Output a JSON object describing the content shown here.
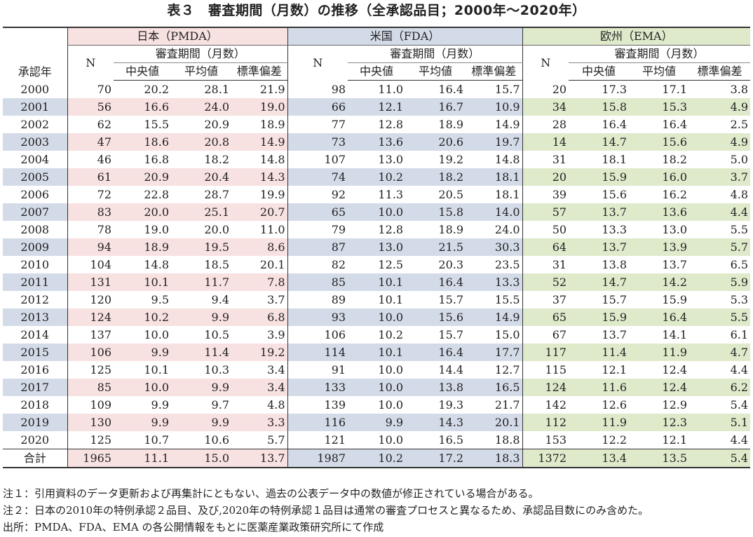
{
  "title": "表３　審査期間（月数）の推移（全承認品目；2000年〜2020年）",
  "header": {
    "year_label": "承認年",
    "regions": [
      "日本（PMDA）",
      "米国（FDA）",
      "欧州（EMA）"
    ],
    "n_label": "N",
    "period_label": "審査期間（月数）",
    "stats": [
      "中央値",
      "平均値",
      "標準偏差"
    ]
  },
  "rows": [
    [
      "2000",
      "70",
      "20.2",
      "28.1",
      "21.9",
      "98",
      "11.0",
      "16.4",
      "15.7",
      "20",
      "17.3",
      "17.1",
      "3.8"
    ],
    [
      "2001",
      "56",
      "16.6",
      "24.0",
      "19.0",
      "66",
      "12.1",
      "16.7",
      "10.9",
      "34",
      "15.8",
      "15.3",
      "4.9"
    ],
    [
      "2002",
      "62",
      "15.5",
      "20.9",
      "18.9",
      "77",
      "12.8",
      "18.9",
      "14.9",
      "28",
      "16.4",
      "16.4",
      "2.5"
    ],
    [
      "2003",
      "47",
      "18.6",
      "20.8",
      "14.9",
      "73",
      "13.6",
      "20.6",
      "19.7",
      "14",
      "14.7",
      "15.6",
      "4.9"
    ],
    [
      "2004",
      "46",
      "16.8",
      "18.2",
      "14.8",
      "107",
      "13.0",
      "19.2",
      "14.8",
      "31",
      "18.1",
      "18.2",
      "5.0"
    ],
    [
      "2005",
      "61",
      "20.9",
      "20.4",
      "14.3",
      "74",
      "10.2",
      "18.2",
      "18.1",
      "20",
      "15.9",
      "16.0",
      "3.7"
    ],
    [
      "2006",
      "72",
      "22.8",
      "28.7",
      "19.9",
      "92",
      "11.3",
      "20.5",
      "18.1",
      "39",
      "15.6",
      "16.2",
      "4.8"
    ],
    [
      "2007",
      "83",
      "20.0",
      "25.1",
      "20.7",
      "65",
      "10.0",
      "15.8",
      "14.0",
      "57",
      "13.7",
      "13.6",
      "4.4"
    ],
    [
      "2008",
      "78",
      "19.0",
      "20.0",
      "11.0",
      "79",
      "12.8",
      "18.9",
      "24.0",
      "50",
      "13.3",
      "13.0",
      "5.5"
    ],
    [
      "2009",
      "94",
      "18.9",
      "19.5",
      "8.6",
      "87",
      "13.0",
      "21.5",
      "30.3",
      "64",
      "13.7",
      "13.9",
      "5.7"
    ],
    [
      "2010",
      "104",
      "14.8",
      "18.5",
      "20.1",
      "82",
      "12.5",
      "20.3",
      "23.5",
      "31",
      "13.8",
      "13.7",
      "6.5"
    ],
    [
      "2011",
      "131",
      "10.1",
      "11.7",
      "7.8",
      "85",
      "10.1",
      "16.4",
      "13.3",
      "52",
      "14.7",
      "14.2",
      "5.9"
    ],
    [
      "2012",
      "120",
      "9.5",
      "9.4",
      "3.7",
      "89",
      "10.1",
      "15.7",
      "15.5",
      "37",
      "15.7",
      "15.9",
      "5.3"
    ],
    [
      "2013",
      "124",
      "10.2",
      "9.9",
      "6.8",
      "93",
      "10.0",
      "15.6",
      "14.9",
      "65",
      "15.9",
      "16.4",
      "5.5"
    ],
    [
      "2014",
      "137",
      "10.0",
      "10.5",
      "3.9",
      "106",
      "10.2",
      "15.7",
      "15.0",
      "67",
      "13.7",
      "14.1",
      "6.1"
    ],
    [
      "2015",
      "106",
      "9.9",
      "11.4",
      "19.2",
      "114",
      "10.1",
      "16.4",
      "17.7",
      "117",
      "11.4",
      "11.9",
      "4.7"
    ],
    [
      "2016",
      "125",
      "10.1",
      "10.3",
      "3.4",
      "91",
      "10.0",
      "14.4",
      "12.7",
      "115",
      "12.1",
      "12.4",
      "4.4"
    ],
    [
      "2017",
      "85",
      "10.0",
      "9.9",
      "3.4",
      "133",
      "10.0",
      "13.8",
      "16.5",
      "124",
      "11.6",
      "12.4",
      "6.2"
    ],
    [
      "2018",
      "109",
      "9.9",
      "9.7",
      "4.8",
      "139",
      "10.0",
      "19.3",
      "21.7",
      "142",
      "12.6",
      "12.9",
      "5.4"
    ],
    [
      "2019",
      "130",
      "9.9",
      "9.9",
      "3.3",
      "116",
      "9.9",
      "14.3",
      "20.1",
      "112",
      "11.9",
      "12.3",
      "5.1"
    ],
    [
      "2020",
      "125",
      "10.7",
      "10.6",
      "5.7",
      "121",
      "10.0",
      "16.5",
      "18.8",
      "153",
      "12.2",
      "12.1",
      "4.4"
    ]
  ],
  "total": [
    "合計",
    "1965",
    "11.1",
    "15.0",
    "13.7",
    "1987",
    "10.2",
    "17.2",
    "18.3",
    "1372",
    "13.4",
    "13.5",
    "5.4"
  ],
  "notes": [
    "注１：引用資料のデータ更新および再集計にともない、過去の公表データ中の数値が修正されている場合がある。",
    "注２：日本の2010年の特例承認２品目、及び,2020年の特例承認１品目は通常の審査プロセスと異なるため、承認品目数にのみ含めた。",
    "出所：PMDA、FDA、EMA の各公開情報をもとに医薬産業政策研究所にて作成"
  ],
  "colors": {
    "japan_shade": "#f8e1e1",
    "us_shade": "#d4dbe8",
    "eu_shade": "#dfeacb"
  }
}
